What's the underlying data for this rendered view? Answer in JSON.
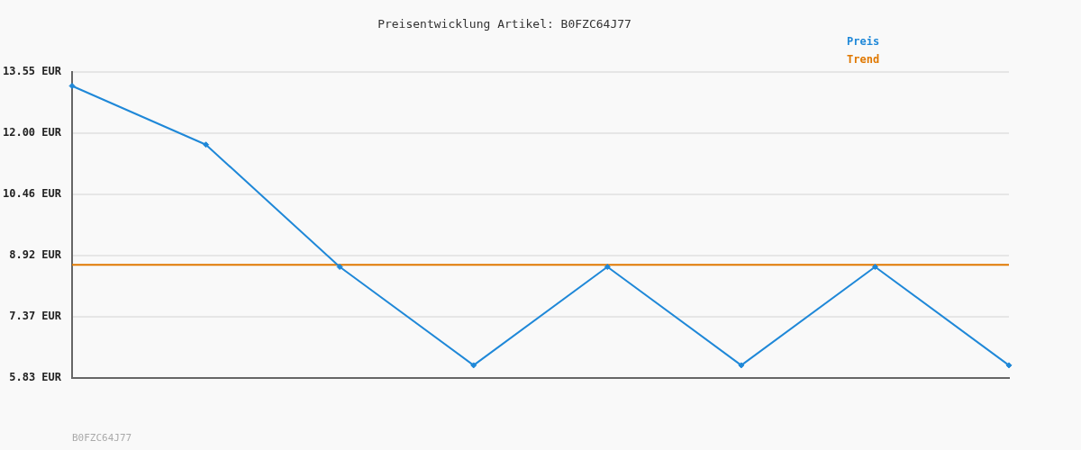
{
  "chart_data": {
    "type": "line",
    "title": "Preisentwicklung Artikel: B0FZC64J77",
    "categories": [
      null,
      null,
      null,
      null,
      null,
      null,
      null,
      null
    ],
    "series": [
      {
        "name": "Preis",
        "color": "#1f88d8",
        "values": [
          13.19,
          11.71,
          8.63,
          6.15,
          8.63,
          6.15,
          8.63,
          6.15
        ]
      },
      {
        "name": "Trend",
        "color": "#e07800",
        "values": [
          8.68,
          8.68,
          8.68,
          8.68,
          8.68,
          8.68,
          8.68,
          8.68
        ],
        "marker": "none"
      }
    ],
    "ylim": [
      5.83,
      13.55
    ],
    "yticks": [
      {
        "value": 5.83,
        "label": "5.83 EUR"
      },
      {
        "value": 7.37,
        "label": "7.37 EUR"
      },
      {
        "value": 8.92,
        "label": "8.92 EUR"
      },
      {
        "value": 10.46,
        "label": "10.46 EUR"
      },
      {
        "value": 12.0,
        "label": "12.00 EUR"
      },
      {
        "value": 13.55,
        "label": "13.55 EUR"
      }
    ],
    "grid": "y",
    "legend": "top right",
    "tick_labels": "y",
    "marker": "diamond",
    "annotations": [
      "B0FZC64J77"
    ]
  }
}
